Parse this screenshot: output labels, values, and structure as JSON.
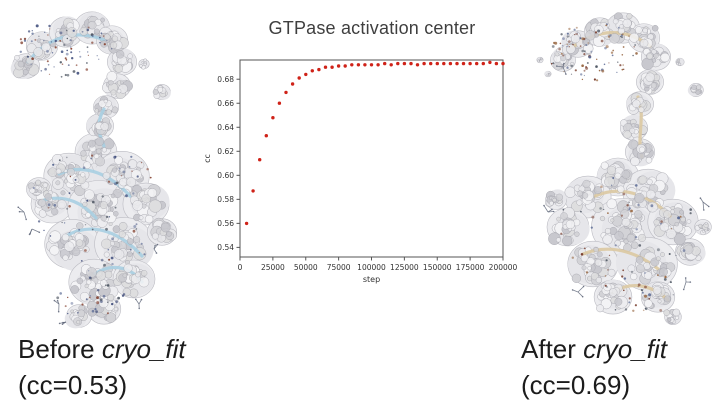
{
  "panels": {
    "before": {
      "label_prefix": "Before ",
      "label_italic": "cryo_fit",
      "cc_line": "(cc=0.53)"
    },
    "after": {
      "label_prefix": "After ",
      "label_italic": "cryo_fit",
      "cc_line": "(cc=0.69)"
    }
  },
  "chart_data": {
    "type": "scatter",
    "title": "GTPase activation center",
    "xlabel": "step",
    "ylabel": "cc",
    "xlim": [
      0,
      200000
    ],
    "ylim": [
      0.532,
      0.696
    ],
    "xticks": [
      0,
      25000,
      50000,
      75000,
      100000,
      125000,
      150000,
      175000,
      200000
    ],
    "yticks": [
      0.54,
      0.56,
      0.58,
      0.6,
      0.62,
      0.64,
      0.66,
      0.68
    ],
    "grid": false,
    "legend": "none",
    "marker_color": "#cf2218",
    "x": [
      5000,
      10000,
      15000,
      20000,
      25000,
      30000,
      35000,
      40000,
      45000,
      50000,
      55000,
      60000,
      65000,
      70000,
      75000,
      80000,
      85000,
      90000,
      95000,
      100000,
      105000,
      110000,
      115000,
      120000,
      125000,
      130000,
      135000,
      140000,
      145000,
      150000,
      155000,
      160000,
      165000,
      170000,
      175000,
      180000,
      185000,
      190000,
      195000,
      200000
    ],
    "y": [
      0.56,
      0.587,
      0.613,
      0.633,
      0.648,
      0.66,
      0.669,
      0.676,
      0.681,
      0.684,
      0.687,
      0.688,
      0.69,
      0.69,
      0.691,
      0.691,
      0.692,
      0.692,
      0.692,
      0.692,
      0.692,
      0.693,
      0.692,
      0.693,
      0.693,
      0.693,
      0.692,
      0.693,
      0.693,
      0.693,
      0.693,
      0.693,
      0.693,
      0.693,
      0.693,
      0.693,
      0.693,
      0.694,
      0.693,
      0.693
    ]
  },
  "colors": {
    "marker": "#cf2218",
    "axis": "#555555",
    "tick_text": "#333333",
    "title_text": "#3f3f3f",
    "caption_text": "#1c1c1c",
    "ribbon_before": "#a9cfe2",
    "ribbon_after": "#dcc9a2"
  }
}
